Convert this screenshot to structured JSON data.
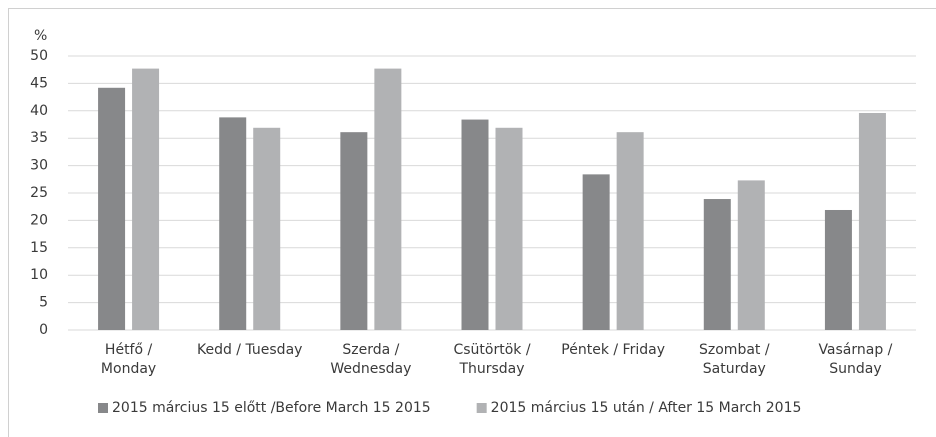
{
  "chart_data": {
    "type": "bar",
    "y_label": "%",
    "categories": [
      [
        "Hétfő /",
        "Monday"
      ],
      [
        "Kedd / Tuesday"
      ],
      [
        "Szerda /",
        "Wednesday"
      ],
      [
        "Csütörtök /",
        "Thursday"
      ],
      [
        "Péntek / Friday"
      ],
      [
        "Szombat /",
        "Saturday"
      ],
      [
        "Vasárnap /",
        "Sunday"
      ]
    ],
    "series": [
      {
        "name": "2015 március 15 előtt /Before March 15 2015",
        "color": "#87888a",
        "values": [
          44.2,
          38.8,
          36.1,
          38.4,
          28.4,
          23.9,
          21.9
        ]
      },
      {
        "name": "2015 március 15 után / After 15 March 2015",
        "color": "#b1b2b4",
        "values": [
          47.7,
          36.9,
          47.7,
          36.9,
          36.1,
          27.3,
          39.6
        ]
      }
    ],
    "ylim": [
      0,
      50
    ],
    "yticks": [
      0,
      5,
      10,
      15,
      20,
      25,
      30,
      35,
      40,
      45,
      50
    ],
    "grid": true,
    "legend": "bottom"
  }
}
